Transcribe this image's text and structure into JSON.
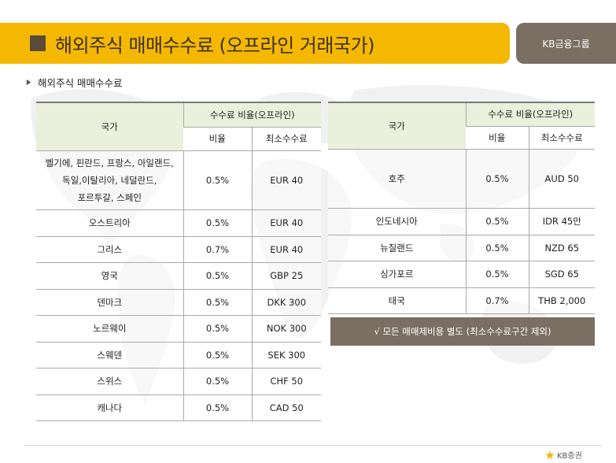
{
  "header": {
    "title": "해외주식 매매수수료 (오프라인 거래국가)",
    "badge": "KB금융그룹"
  },
  "section": {
    "title": "해외주식 매매수수료"
  },
  "table_left": {
    "col_country": "국가",
    "col_fee_group": "수수료 비율(오프라인)",
    "col_rate": "비율",
    "col_min": "최소수수료",
    "rows": [
      {
        "country_lines": [
          "벨기에, 핀란드, 프랑스, 아일랜드,",
          "독일,이탈리아, 네덜란드,",
          "포르투갈, 스페인"
        ],
        "rate": "0.5%",
        "min": "EUR 40"
      },
      {
        "country_lines": [
          "오스트리아"
        ],
        "rate": "0.5%",
        "min": "EUR 40"
      },
      {
        "country_lines": [
          "그리스"
        ],
        "rate": "0.7%",
        "min": "EUR 40"
      },
      {
        "country_lines": [
          "영국"
        ],
        "rate": "0.5%",
        "min": "GBP 25"
      },
      {
        "country_lines": [
          "덴마크"
        ],
        "rate": "0.5%",
        "min": "DKK 300"
      },
      {
        "country_lines": [
          "노르웨이"
        ],
        "rate": "0.5%",
        "min": "NOK 300"
      },
      {
        "country_lines": [
          "스웨덴"
        ],
        "rate": "0.5%",
        "min": "SEK 300"
      },
      {
        "country_lines": [
          "스위스"
        ],
        "rate": "0.5%",
        "min": "CHF 50"
      },
      {
        "country_lines": [
          "캐나다"
        ],
        "rate": "0.5%",
        "min": "CAD 50"
      }
    ]
  },
  "table_right": {
    "col_country": "국가",
    "col_fee_group": "수수료 비율(오프라인)",
    "col_rate": "비율",
    "col_min": "최소수수료",
    "rows": [
      {
        "country": "호주",
        "rate": "0.5%",
        "min": "AUD 50"
      },
      {
        "country": "인도네시아",
        "rate": "0.5%",
        "min": "IDR 45만"
      },
      {
        "country": "뉴질랜드",
        "rate": "0.5%",
        "min": "NZD 65"
      },
      {
        "country": "싱가포르",
        "rate": "0.5%",
        "min": "SGD 65"
      },
      {
        "country": "태국",
        "rate": "0.7%",
        "min": "THB 2,000"
      }
    ]
  },
  "note": {
    "text": "√ 모든 매매제비용 별도 (최소수수료구간 제외)"
  },
  "footer": {
    "logo_text": "KB증권"
  },
  "colors": {
    "title_bar": "#f5b800",
    "badge": "#7b6f64",
    "table_header": "#ebf0dc",
    "note_bg": "#7b6f64",
    "logo_star": "#f5b800"
  }
}
